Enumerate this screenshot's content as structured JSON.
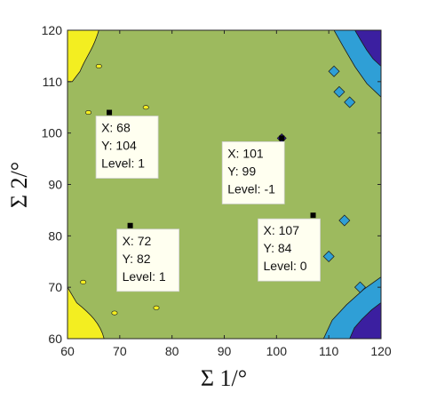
{
  "chart_data": {
    "type": "heatmap",
    "subtype": "filled-contour",
    "title": "",
    "xlabel": "Σ 1/°",
    "ylabel": "Σ 2/°",
    "xlim": [
      60,
      120
    ],
    "ylim": [
      60,
      120
    ],
    "xticks": [
      60,
      70,
      80,
      90,
      100,
      110,
      120
    ],
    "yticks": [
      60,
      70,
      80,
      90,
      100,
      110,
      120
    ],
    "grid": false,
    "levels": [
      {
        "value": -1,
        "color": "#3b1fa0"
      },
      {
        "value": 0,
        "color": "#2f9fd6"
      },
      {
        "value": 1,
        "color": "#9dba5e"
      },
      {
        "value": 2,
        "color": "#f3ee21"
      }
    ],
    "background_level": 1,
    "regions": [
      {
        "level": 2,
        "corner": "top-left",
        "x": [
          60,
          66
        ],
        "y": [
          110,
          120
        ]
      },
      {
        "level": 2,
        "corner": "bottom-left",
        "x": [
          60,
          67
        ],
        "y": [
          60,
          70
        ]
      },
      {
        "level": 0,
        "corner": "top-right",
        "x": [
          111,
          120
        ],
        "y": [
          107,
          120
        ]
      },
      {
        "level": -1,
        "corner": "top-right",
        "x": [
          115,
          120
        ],
        "y": [
          113,
          120
        ]
      },
      {
        "level": 0,
        "corner": "bottom-right",
        "x": [
          109,
          120
        ],
        "y": [
          60,
          72
        ]
      },
      {
        "level": -1,
        "corner": "bottom-right",
        "x": [
          114,
          120
        ],
        "y": [
          60,
          67
        ]
      }
    ],
    "datatips": [
      {
        "x": 68,
        "y": 104,
        "level": 1,
        "label_x": "X: 68",
        "label_y": "Y: 104",
        "label_level": "Level: 1"
      },
      {
        "x": 101,
        "y": 99,
        "level": -1,
        "label_x": "X: 101",
        "label_y": "Y: 99",
        "label_level": "Level: -1"
      },
      {
        "x": 72,
        "y": 82,
        "level": 1,
        "label_x": "X: 72",
        "label_y": "Y: 82",
        "label_level": "Level: 1"
      },
      {
        "x": 107,
        "y": 84,
        "level": 0,
        "label_x": "X: 107",
        "label_y": "Y: 84",
        "label_level": "Level: 0"
      }
    ]
  }
}
